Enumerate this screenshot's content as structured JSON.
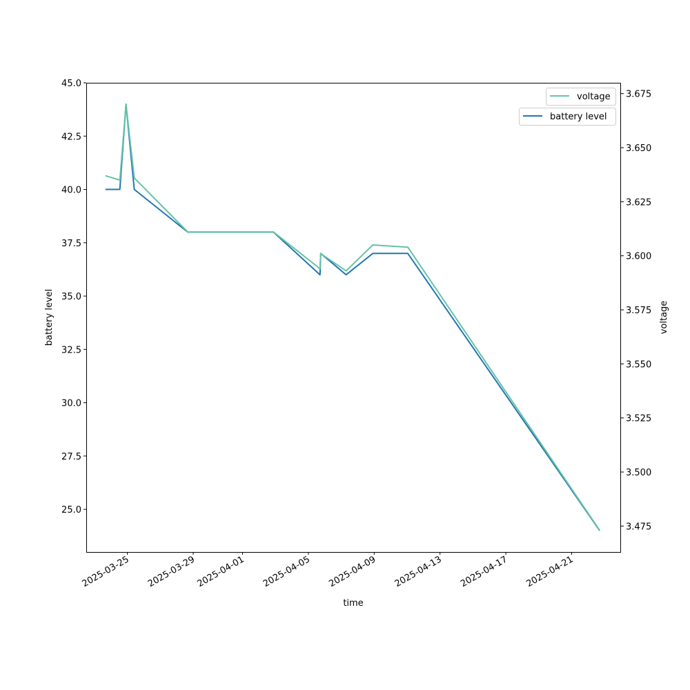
{
  "chart_data": {
    "type": "line",
    "xlabel": "time",
    "ylabel": "battery level",
    "y2label": "voltage",
    "xlim": [
      "2025-03-22T12:00",
      "2025-04-24T00:00"
    ],
    "ylim": [
      23.0,
      45.0
    ],
    "y2lim": [
      3.463,
      3.68
    ],
    "x_ticks": [
      "2025-03-25",
      "2025-03-29",
      "2025-04-01",
      "2025-04-05",
      "2025-04-09",
      "2025-04-13",
      "2025-04-17",
      "2025-04-21"
    ],
    "y_ticks": [
      "25.0",
      "27.5",
      "30.0",
      "32.5",
      "35.0",
      "37.5",
      "40.0",
      "42.5",
      "45.0"
    ],
    "y2_ticks": [
      "3.475",
      "3.500",
      "3.525",
      "3.550",
      "3.575",
      "3.600",
      "3.625",
      "3.650",
      "3.675"
    ],
    "x": [
      "2025-03-23T16:00",
      "2025-03-24T13:00",
      "2025-03-24T22:00",
      "2025-03-25T10:00",
      "2025-03-28T16:00",
      "2025-04-02T21:00",
      "2025-04-05T17:00",
      "2025-04-05T18:00",
      "2025-04-07T07:00",
      "2025-04-08T22:00",
      "2025-04-11T01:00",
      "2025-04-22T17:00"
    ],
    "series": [
      {
        "name": "battery level",
        "axis": "left",
        "color": "#1f77b4",
        "values": [
          40,
          40,
          44,
          40,
          38,
          38,
          36,
          37,
          36,
          37,
          37,
          24
        ]
      },
      {
        "name": "voltage",
        "axis": "right",
        "color": "#66c2a5",
        "values": [
          3.637,
          3.635,
          3.67,
          3.636,
          3.611,
          3.611,
          3.594,
          3.601,
          3.593,
          3.605,
          3.604,
          3.473
        ]
      }
    ],
    "legend": [
      "battery level",
      "voltage"
    ],
    "legend_placement": "top-right",
    "grid": false
  }
}
